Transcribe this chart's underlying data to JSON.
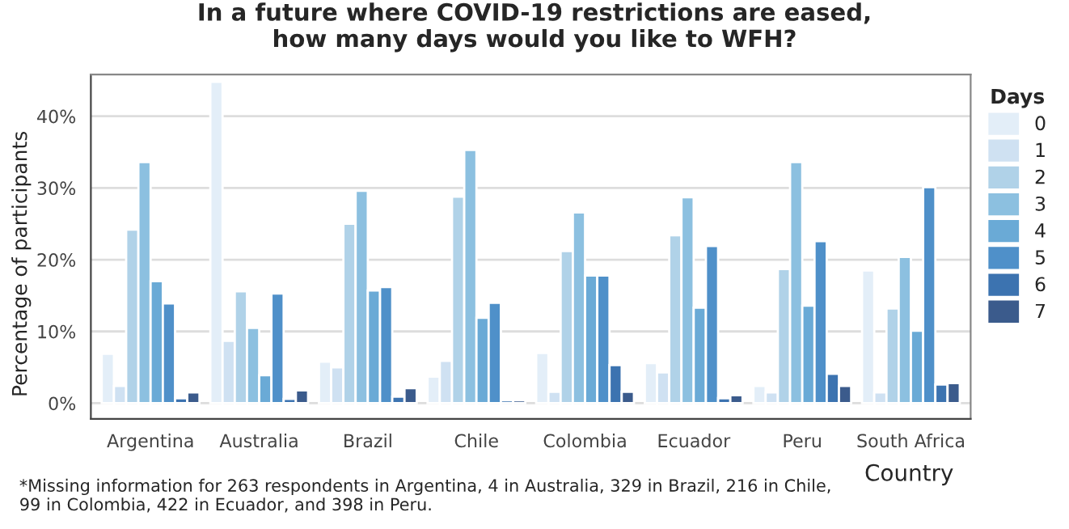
{
  "chart_data": {
    "type": "bar",
    "title": "In a future where COVID-19 restrictions are eased,\nhow many days would you like to WFH?",
    "xlabel": "Country",
    "ylabel": "Percentage of participants",
    "legend_title": "Days",
    "categories": [
      "Argentina",
      "Australia",
      "Brazil",
      "Chile",
      "Colombia",
      "Ecuador",
      "Peru",
      "South Africa"
    ],
    "series": [
      {
        "name": "0",
        "color": "#e3eef8",
        "values": [
          6.9,
          44.8,
          5.8,
          3.7,
          7.0,
          5.6,
          2.4,
          18.5
        ]
      },
      {
        "name": "1",
        "color": "#cfe1f2",
        "values": [
          2.4,
          8.7,
          5.0,
          5.9,
          1.6,
          4.3,
          1.5,
          1.5
        ]
      },
      {
        "name": "2",
        "color": "#b0d2e8",
        "values": [
          24.2,
          15.6,
          25.0,
          28.8,
          21.2,
          23.4,
          18.7,
          13.2
        ]
      },
      {
        "name": "3",
        "color": "#8cc0e0",
        "values": [
          33.6,
          10.5,
          29.6,
          35.3,
          26.6,
          28.7,
          33.6,
          20.4
        ]
      },
      {
        "name": "4",
        "color": "#6aaad6",
        "values": [
          17.0,
          3.9,
          15.7,
          11.9,
          17.8,
          13.3,
          13.6,
          10.1
        ]
      },
      {
        "name": "5",
        "color": "#4f90c9",
        "values": [
          13.9,
          15.3,
          16.2,
          14.0,
          17.8,
          21.9,
          22.6,
          30.1
        ]
      },
      {
        "name": "6",
        "color": "#3c73b0",
        "values": [
          0.7,
          0.6,
          0.9,
          0.4,
          5.3,
          0.7,
          4.1,
          2.6
        ]
      },
      {
        "name": "7",
        "color": "#3b5b8c",
        "values": [
          1.5,
          1.8,
          2.1,
          0.4,
          1.6,
          1.1,
          2.4,
          2.8
        ]
      }
    ],
    "ylim": [
      -2.2,
      45.8
    ],
    "yticks": [
      {
        "value": 0,
        "label": "0%"
      },
      {
        "value": 10,
        "label": "10%"
      },
      {
        "value": 20,
        "label": "20%"
      },
      {
        "value": 30,
        "label": "30%"
      },
      {
        "value": 40,
        "label": "40%"
      }
    ],
    "grid": "y",
    "legend": "right",
    "annotations": [
      "*Missing information for 263 respondents in Argentina, 4 in Australia, 329 in Brazil, 216 in Chile,\n99 in Colombia, 422 in Ecuador, and 398 in Peru."
    ]
  }
}
